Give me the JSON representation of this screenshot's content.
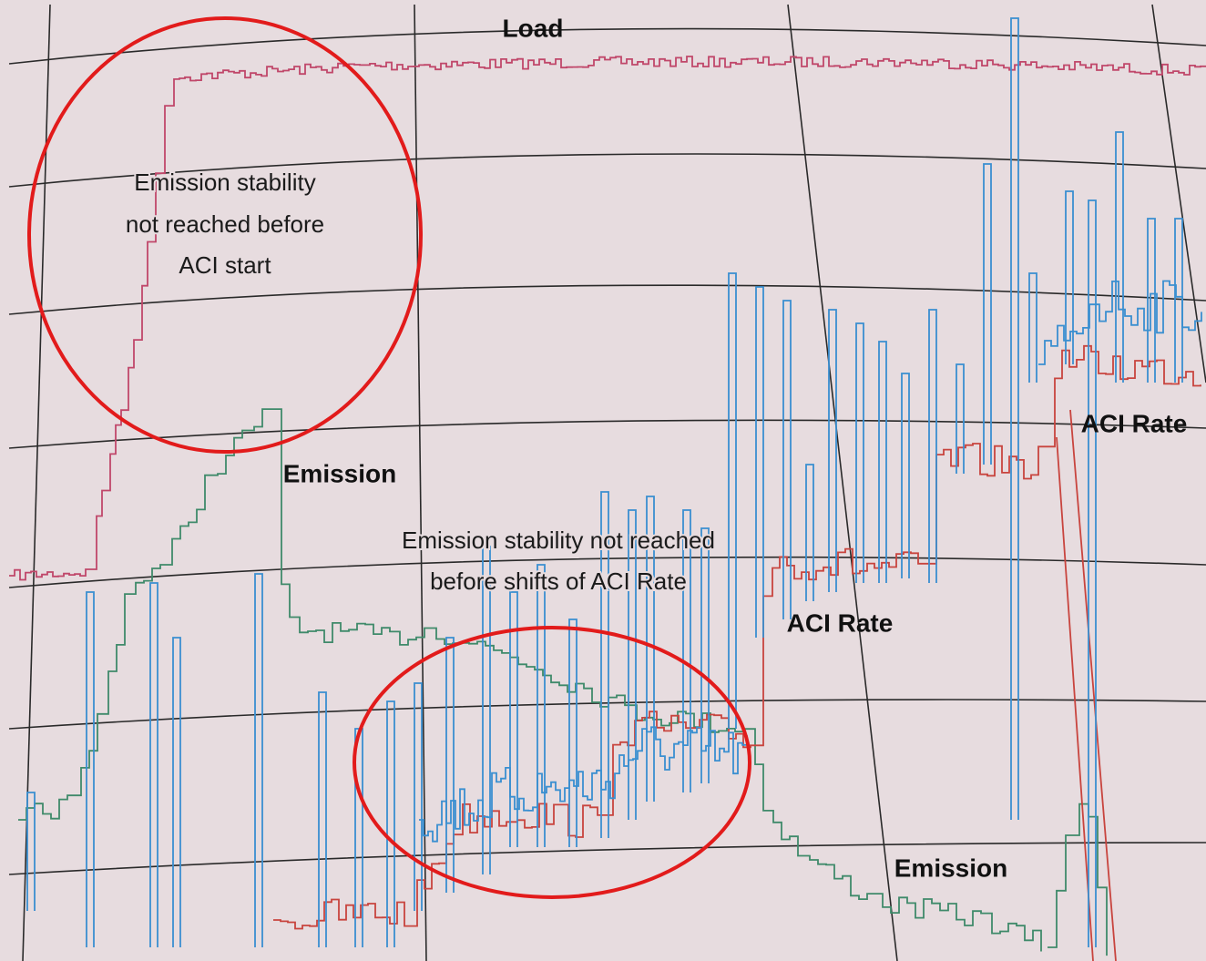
{
  "labels": {
    "load": "Load",
    "emission_left": "Emission",
    "emission_right": "Emission",
    "aci_rate_middle": "ACI Rate",
    "aci_rate_right": "ACI Rate"
  },
  "annotations": [
    {
      "lines": [
        "Emission stability",
        "not reached before",
        "ACI start"
      ]
    },
    {
      "lines": [
        "Emission stability not reached",
        "before shifts of ACI Rate"
      ]
    }
  ]
}
